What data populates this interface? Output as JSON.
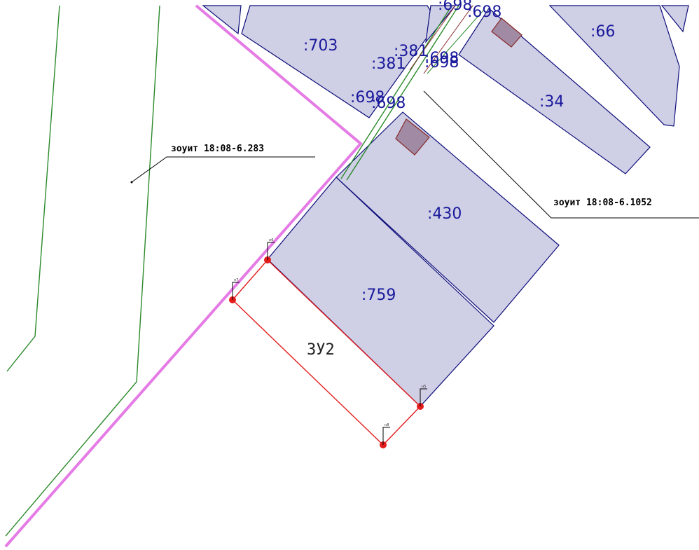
{
  "colors": {
    "parcel_fill": "#cfcfe6",
    "parcel_stroke": "#0d0d7a",
    "parcel_label": "#1a1a9c",
    "boundary_magenta": "#e57be5",
    "zone_green": "#2b8a2b",
    "new_parcel_red": "#e31b1b",
    "building_fill": "#a08aa4"
  },
  "parcels": {
    "p703": ":703",
    "p66": ":66",
    "p34": ":34",
    "p430": ":430",
    "p759": ":759",
    "p698a": ":698",
    "p698b": ":698",
    "p698c": ":698",
    "p698d": ":698",
    "p381a": ":381",
    "p381b": ":381",
    "p698e": ":698",
    "p698f": ":698"
  },
  "zones": {
    "zone_left": "зоуит 18:08-6.283",
    "zone_right": "зоуит 18:08-6.1052"
  },
  "new_parcel": {
    "label": "ЗУ2",
    "points": [
      "н6",
      "н7",
      "н8",
      "н5"
    ]
  }
}
